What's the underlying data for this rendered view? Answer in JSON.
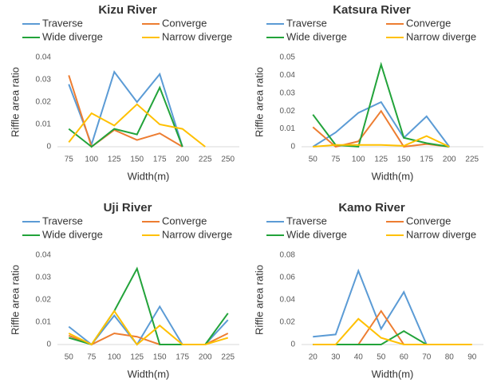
{
  "chart_data": [
    {
      "type": "line",
      "title": "Kizu River",
      "x_label": "Width(m)",
      "y_label": "Riffle area ratio",
      "categories": [
        "75",
        "100",
        "125",
        "150",
        "175",
        "200",
        "225",
        "250"
      ],
      "ylim": [
        0,
        0.04
      ],
      "yticks": [
        0,
        0.01,
        0.02,
        0.03,
        0.04
      ],
      "grid": false,
      "series": [
        {
          "name": "Traverse",
          "color": "#5b9bd5",
          "values": [
            0.028,
            0.001,
            0.0335,
            0.02,
            0.0325,
            0,
            null,
            null
          ]
        },
        {
          "name": "Converge",
          "color": "#ed7d31",
          "values": [
            0.032,
            0,
            0.0075,
            0.003,
            0.006,
            0,
            null,
            null
          ]
        },
        {
          "name": "Wide diverge",
          "color": "#22a33a",
          "values": [
            0.008,
            0,
            0.008,
            0.0055,
            0.0265,
            0,
            null,
            null
          ]
        },
        {
          "name": "Narrow diverge",
          "color": "#ffc000",
          "values": [
            0.002,
            0.015,
            0.0095,
            0.019,
            0.01,
            0.008,
            0,
            null
          ]
        }
      ]
    },
    {
      "type": "line",
      "title": "Katsura River",
      "x_label": "Width(m)",
      "y_label": "Riffle area ratio",
      "categories": [
        "50",
        "75",
        "100",
        "125",
        "150",
        "175",
        "200",
        "225"
      ],
      "ylim": [
        0,
        0.05
      ],
      "yticks": [
        0,
        0.01,
        0.02,
        0.03,
        0.04,
        0.05
      ],
      "grid": false,
      "series": [
        {
          "name": "Traverse",
          "color": "#5b9bd5",
          "values": [
            0,
            0.008,
            0.019,
            0.025,
            0.005,
            0.017,
            0,
            null
          ]
        },
        {
          "name": "Converge",
          "color": "#ed7d31",
          "values": [
            0.011,
            0,
            0.003,
            0.02,
            0,
            0.0015,
            0,
            null
          ]
        },
        {
          "name": "Wide diverge",
          "color": "#22a33a",
          "values": [
            0.018,
            0.001,
            0,
            0.046,
            0.005,
            0.002,
            0,
            null
          ]
        },
        {
          "name": "Narrow diverge",
          "color": "#ffc000",
          "values": [
            0,
            0.001,
            0.001,
            0.001,
            0.0005,
            0.006,
            0,
            null
          ]
        }
      ]
    },
    {
      "type": "line",
      "title": "Uji River",
      "x_label": "Width(m)",
      "y_label": "Riffle area ratio",
      "categories": [
        "50",
        "75",
        "100",
        "125",
        "150",
        "175",
        "200",
        "225"
      ],
      "ylim": [
        0,
        0.04
      ],
      "yticks": [
        0,
        0.01,
        0.02,
        0.03,
        0.04
      ],
      "grid": false,
      "series": [
        {
          "name": "Traverse",
          "color": "#5b9bd5",
          "values": [
            0.008,
            0,
            0.013,
            0,
            0.017,
            0,
            0,
            0.011
          ]
        },
        {
          "name": "Converge",
          "color": "#ed7d31",
          "values": [
            0.004,
            0,
            0.005,
            0.0035,
            0,
            0,
            0,
            0.005
          ]
        },
        {
          "name": "Wide diverge",
          "color": "#22a33a",
          "values": [
            0.003,
            0,
            0.015,
            0.034,
            0,
            0,
            0,
            0.014
          ]
        },
        {
          "name": "Narrow diverge",
          "color": "#ffc000",
          "values": [
            0.005,
            0,
            0.015,
            0,
            0.0085,
            0,
            0,
            0.003
          ]
        }
      ]
    },
    {
      "type": "line",
      "title": "Kamo River",
      "x_label": "Width(m)",
      "y_label": "Riffle area ratio",
      "categories": [
        "20",
        "30",
        "40",
        "50",
        "60",
        "70",
        "80",
        "90"
      ],
      "ylim": [
        0,
        0.08
      ],
      "yticks": [
        0,
        0.02,
        0.04,
        0.06,
        0.08
      ],
      "grid": false,
      "series": [
        {
          "name": "Traverse",
          "color": "#5b9bd5",
          "values": [
            0.007,
            0.009,
            0.066,
            0.014,
            0.047,
            0,
            null,
            null
          ]
        },
        {
          "name": "Converge",
          "color": "#ed7d31",
          "values": [
            0,
            0,
            0,
            0.03,
            0,
            0,
            null,
            null
          ]
        },
        {
          "name": "Wide diverge",
          "color": "#22a33a",
          "values": [
            0,
            0,
            0,
            0,
            0.012,
            0,
            null,
            null
          ]
        },
        {
          "name": "Narrow diverge",
          "color": "#ffc000",
          "values": [
            0,
            0,
            0.023,
            0.006,
            0,
            0,
            0,
            0
          ]
        }
      ]
    }
  ]
}
